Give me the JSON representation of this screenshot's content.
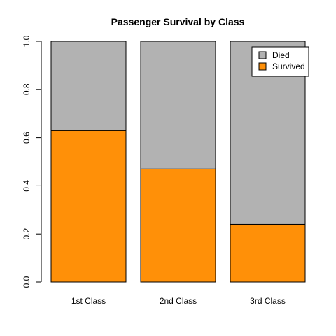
{
  "chart_data": {
    "type": "bar",
    "stacked": true,
    "title": "Passenger Survival by Class",
    "xlabel": "",
    "ylabel": "",
    "categories": [
      "1st Class",
      "2nd Class",
      "3rd Class"
    ],
    "series": [
      {
        "name": "Survived",
        "color": "#FF9008",
        "values": [
          0.63,
          0.47,
          0.24
        ]
      },
      {
        "name": "Died",
        "color": "#B2B2B2",
        "values": [
          0.37,
          0.53,
          0.76
        ]
      }
    ],
    "ylim": [
      0,
      1.0
    ],
    "yticks": [
      "0.0",
      "0.2",
      "0.4",
      "0.6",
      "0.8",
      "1.0"
    ],
    "legend": {
      "position": "top-right",
      "entries": [
        {
          "label": "Died",
          "color": "#B2B2B2"
        },
        {
          "label": "Survived",
          "color": "#FF9008"
        }
      ]
    },
    "grid": false
  }
}
